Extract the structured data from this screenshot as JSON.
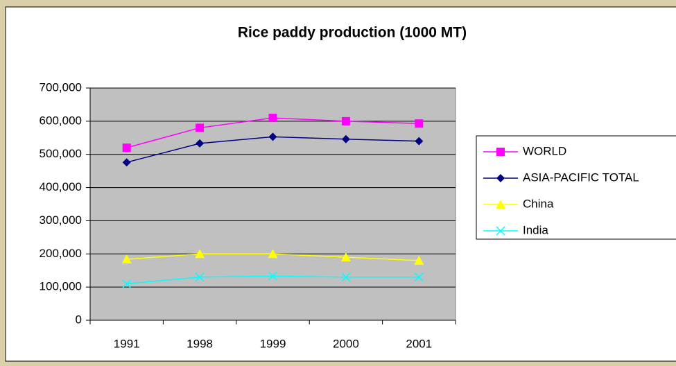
{
  "chart_data": {
    "type": "line",
    "title": "Rice paddy production (1000 MT)",
    "categories": [
      "1991",
      "1998",
      "1999",
      "2000",
      "2001"
    ],
    "series": [
      {
        "name": "WORLD",
        "color": "#ff00ff",
        "marker": "square",
        "values": [
          520000,
          580000,
          610000,
          600000,
          593000
        ]
      },
      {
        "name": "ASIA-PACIFIC TOTAL",
        "color": "#000080",
        "marker": "diamond",
        "values": [
          476000,
          533000,
          553000,
          546000,
          540000
        ]
      },
      {
        "name": "China",
        "color": "#ffff00",
        "marker": "triangle",
        "values": [
          184000,
          200000,
          200000,
          190000,
          180000
        ]
      },
      {
        "name": "India",
        "color": "#00ffff",
        "marker": "x",
        "values": [
          110000,
          130000,
          133000,
          130000,
          130000
        ]
      }
    ],
    "ylim": [
      0,
      700000
    ],
    "yticks": [
      0,
      {
        "value": 100000,
        "label": "100,000"
      },
      {
        "value": 200000,
        "label": "200,000"
      },
      {
        "value": 300000,
        "label": "300,000"
      },
      {
        "value": 400000,
        "label": "400,000"
      },
      {
        "value": 500000,
        "label": "500,000"
      },
      {
        "value": 600000,
        "label": "600,000"
      },
      {
        "value": 700000,
        "label": "700,000"
      }
    ],
    "grid": true,
    "legend": "right",
    "plot_background": "#c0c0c0"
  }
}
